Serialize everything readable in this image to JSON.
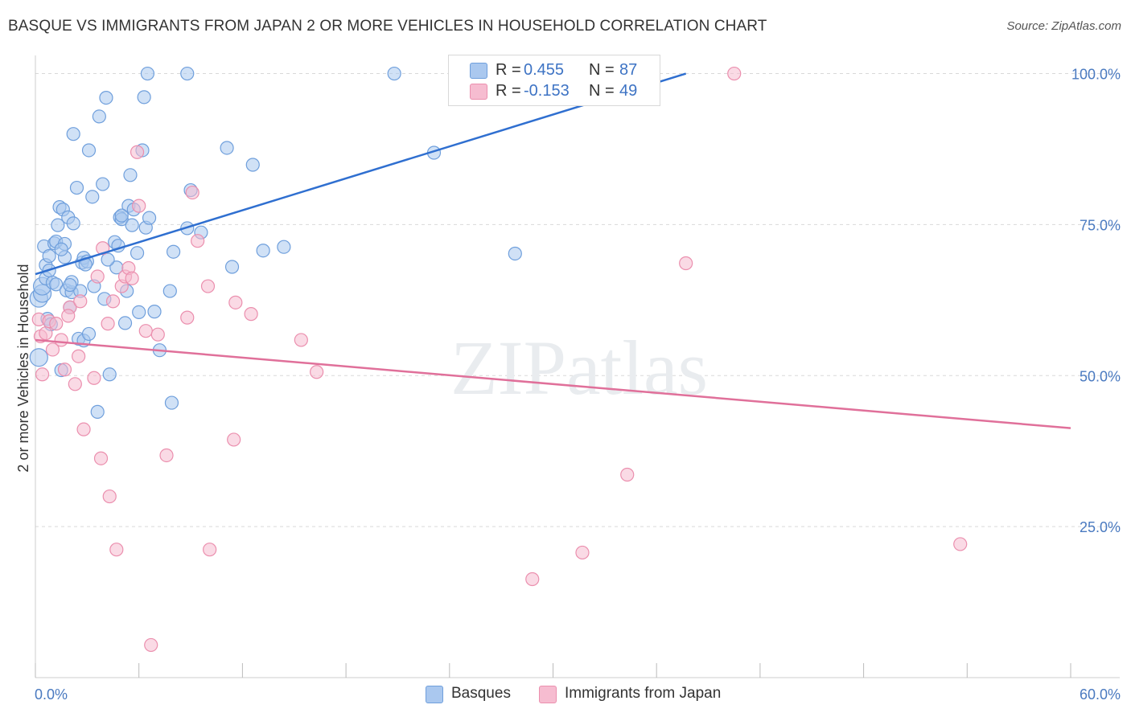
{
  "title": "BASQUE VS IMMIGRANTS FROM JAPAN 2 OR MORE VEHICLES IN HOUSEHOLD CORRELATION CHART",
  "source": "Source: ZipAtlas.com",
  "watermark": "ZIPatlas",
  "colors": {
    "basque_fill": "#aac8ef",
    "basque_stroke": "#6f9fdc",
    "basque_line": "#2f6fd0",
    "japan_fill": "#f6bcd0",
    "japan_stroke": "#eb8fae",
    "japan_line": "#e0709a",
    "tick_text": "#4a7ac0",
    "grid": "#d9d9d9"
  },
  "legend": {
    "rows": [
      {
        "r_label": "R =",
        "r_value": "0.455",
        "n_label": "N =",
        "n_value": "87",
        "color": "#aac8ef",
        "stroke": "#6f9fdc"
      },
      {
        "r_label": "R =",
        "r_value": "-0.153",
        "n_label": "N =",
        "n_value": "49",
        "color": "#f6bcd0",
        "stroke": "#eb8fae"
      }
    ]
  },
  "bottom_legend": [
    {
      "label": "Basques",
      "color": "#aac8ef",
      "stroke": "#6f9fdc"
    },
    {
      "label": "Immigrants from Japan",
      "color": "#f6bcd0",
      "stroke": "#eb8fae"
    }
  ],
  "chart_data": {
    "type": "scatter",
    "title": "BASQUE VS IMMIGRANTS FROM JAPAN 2 OR MORE VEHICLES IN HOUSEHOLD CORRELATION CHART",
    "xlabel": "",
    "ylabel": "2 or more Vehicles in Household",
    "xlim": [
      0,
      60
    ],
    "ylim": [
      0,
      103
    ],
    "x_tick_labels": [
      "0.0%",
      "60.0%"
    ],
    "y_ticks": [
      25,
      50,
      75,
      100
    ],
    "y_tick_labels": [
      "25.0%",
      "50.0%",
      "75.0%",
      "100.0%"
    ],
    "grid": "horizontal dashed",
    "legend_position": "top-center",
    "series": [
      {
        "name": "Basques",
        "trend": {
          "x": [
            0,
            37.7
          ],
          "y": [
            66.8,
            100
          ]
        },
        "points": [
          [
            0.2,
            53
          ],
          [
            0.2,
            62.8
          ],
          [
            0.4,
            63.6
          ],
          [
            0.4,
            64.8
          ],
          [
            0.5,
            71.4
          ],
          [
            0.6,
            68.3
          ],
          [
            0.6,
            66.1
          ],
          [
            0.7,
            59.4
          ],
          [
            0.8,
            67.4
          ],
          [
            0.8,
            69.8
          ],
          [
            1.0,
            65.4
          ],
          [
            1.1,
            71.9
          ],
          [
            1.2,
            72.2
          ],
          [
            1.2,
            65.1
          ],
          [
            1.3,
            74.9
          ],
          [
            1.4,
            77.9
          ],
          [
            1.5,
            50.9
          ],
          [
            1.6,
            77.5
          ],
          [
            1.7,
            69.6
          ],
          [
            1.7,
            71.8
          ],
          [
            1.8,
            64.1
          ],
          [
            1.9,
            76.2
          ],
          [
            2.0,
            61.3
          ],
          [
            2.1,
            63.8
          ],
          [
            2.1,
            65.5
          ],
          [
            2.2,
            75.2
          ],
          [
            2.2,
            90.0
          ],
          [
            2.4,
            81.1
          ],
          [
            2.5,
            56.1
          ],
          [
            2.6,
            64.0
          ],
          [
            2.7,
            68.7
          ],
          [
            2.8,
            55.8
          ],
          [
            2.8,
            69.5
          ],
          [
            3.0,
            68.9
          ],
          [
            3.1,
            87.3
          ],
          [
            3.3,
            79.6
          ],
          [
            3.4,
            64.8
          ],
          [
            3.6,
            44.0
          ],
          [
            3.7,
            92.9
          ],
          [
            3.9,
            81.7
          ],
          [
            4.0,
            62.7
          ],
          [
            4.1,
            96.0
          ],
          [
            4.3,
            50.2
          ],
          [
            4.6,
            72.1
          ],
          [
            4.7,
            67.9
          ],
          [
            4.8,
            71.5
          ],
          [
            4.9,
            76.2
          ],
          [
            5.0,
            75.9
          ],
          [
            5.2,
            58.7
          ],
          [
            5.3,
            64.0
          ],
          [
            5.4,
            78.1
          ],
          [
            5.5,
            83.2
          ],
          [
            5.6,
            74.9
          ],
          [
            5.7,
            77.5
          ],
          [
            5.9,
            70.3
          ],
          [
            6.0,
            60.5
          ],
          [
            6.2,
            87.3
          ],
          [
            6.3,
            96.1
          ],
          [
            6.4,
            74.5
          ],
          [
            6.5,
            100.0
          ],
          [
            6.6,
            76.1
          ],
          [
            6.9,
            60.6
          ],
          [
            7.2,
            54.2
          ],
          [
            7.8,
            64.0
          ],
          [
            7.9,
            45.5
          ],
          [
            8.0,
            70.5
          ],
          [
            8.8,
            100.0
          ],
          [
            8.8,
            74.4
          ],
          [
            9.0,
            80.7
          ],
          [
            9.6,
            73.7
          ],
          [
            11.1,
            87.7
          ],
          [
            11.4,
            68.0
          ],
          [
            12.6,
            84.9
          ],
          [
            13.2,
            70.7
          ],
          [
            14.4,
            71.3
          ],
          [
            20.8,
            100.0
          ],
          [
            23.1,
            86.9
          ],
          [
            27.8,
            70.2
          ],
          [
            30.4,
            99.1
          ],
          [
            33.0,
            100.0
          ],
          [
            3.1,
            56.9
          ],
          [
            2.0,
            65.0
          ],
          [
            5.0,
            76.5
          ],
          [
            1.5,
            70.9
          ],
          [
            0.9,
            58.5
          ],
          [
            4.2,
            69.2
          ],
          [
            2.9,
            68.4
          ]
        ]
      },
      {
        "name": "Immigrants from Japan",
        "trend": {
          "x": [
            0,
            60
          ],
          "y": [
            55.9,
            41.3
          ]
        },
        "points": [
          [
            0.2,
            59.3
          ],
          [
            0.3,
            56.5
          ],
          [
            0.4,
            50.2
          ],
          [
            0.6,
            57.0
          ],
          [
            0.8,
            59.0
          ],
          [
            1.0,
            54.3
          ],
          [
            1.2,
            58.6
          ],
          [
            1.5,
            55.9
          ],
          [
            1.7,
            51.0
          ],
          [
            2.0,
            61.3
          ],
          [
            2.3,
            48.6
          ],
          [
            2.5,
            53.2
          ],
          [
            2.6,
            62.3
          ],
          [
            2.8,
            41.1
          ],
          [
            3.4,
            49.6
          ],
          [
            3.6,
            66.4
          ],
          [
            3.8,
            36.3
          ],
          [
            3.9,
            71.1
          ],
          [
            4.2,
            58.6
          ],
          [
            4.3,
            30.0
          ],
          [
            4.5,
            62.3
          ],
          [
            4.7,
            21.2
          ],
          [
            5.0,
            64.8
          ],
          [
            5.2,
            66.4
          ],
          [
            5.4,
            67.8
          ],
          [
            5.6,
            66.1
          ],
          [
            5.9,
            87.0
          ],
          [
            6.0,
            78.1
          ],
          [
            6.4,
            57.4
          ],
          [
            6.7,
            5.4
          ],
          [
            7.1,
            56.8
          ],
          [
            7.6,
            36.8
          ],
          [
            8.8,
            59.6
          ],
          [
            9.1,
            80.3
          ],
          [
            9.4,
            72.3
          ],
          [
            10.0,
            64.8
          ],
          [
            10.1,
            21.2
          ],
          [
            11.5,
            39.4
          ],
          [
            11.6,
            62.1
          ],
          [
            12.5,
            60.2
          ],
          [
            15.4,
            55.9
          ],
          [
            16.3,
            50.6
          ],
          [
            28.8,
            16.3
          ],
          [
            31.7,
            20.7
          ],
          [
            34.3,
            33.6
          ],
          [
            37.7,
            68.6
          ],
          [
            40.5,
            100.0
          ],
          [
            53.6,
            22.1
          ],
          [
            1.9,
            59.9
          ]
        ]
      }
    ]
  }
}
